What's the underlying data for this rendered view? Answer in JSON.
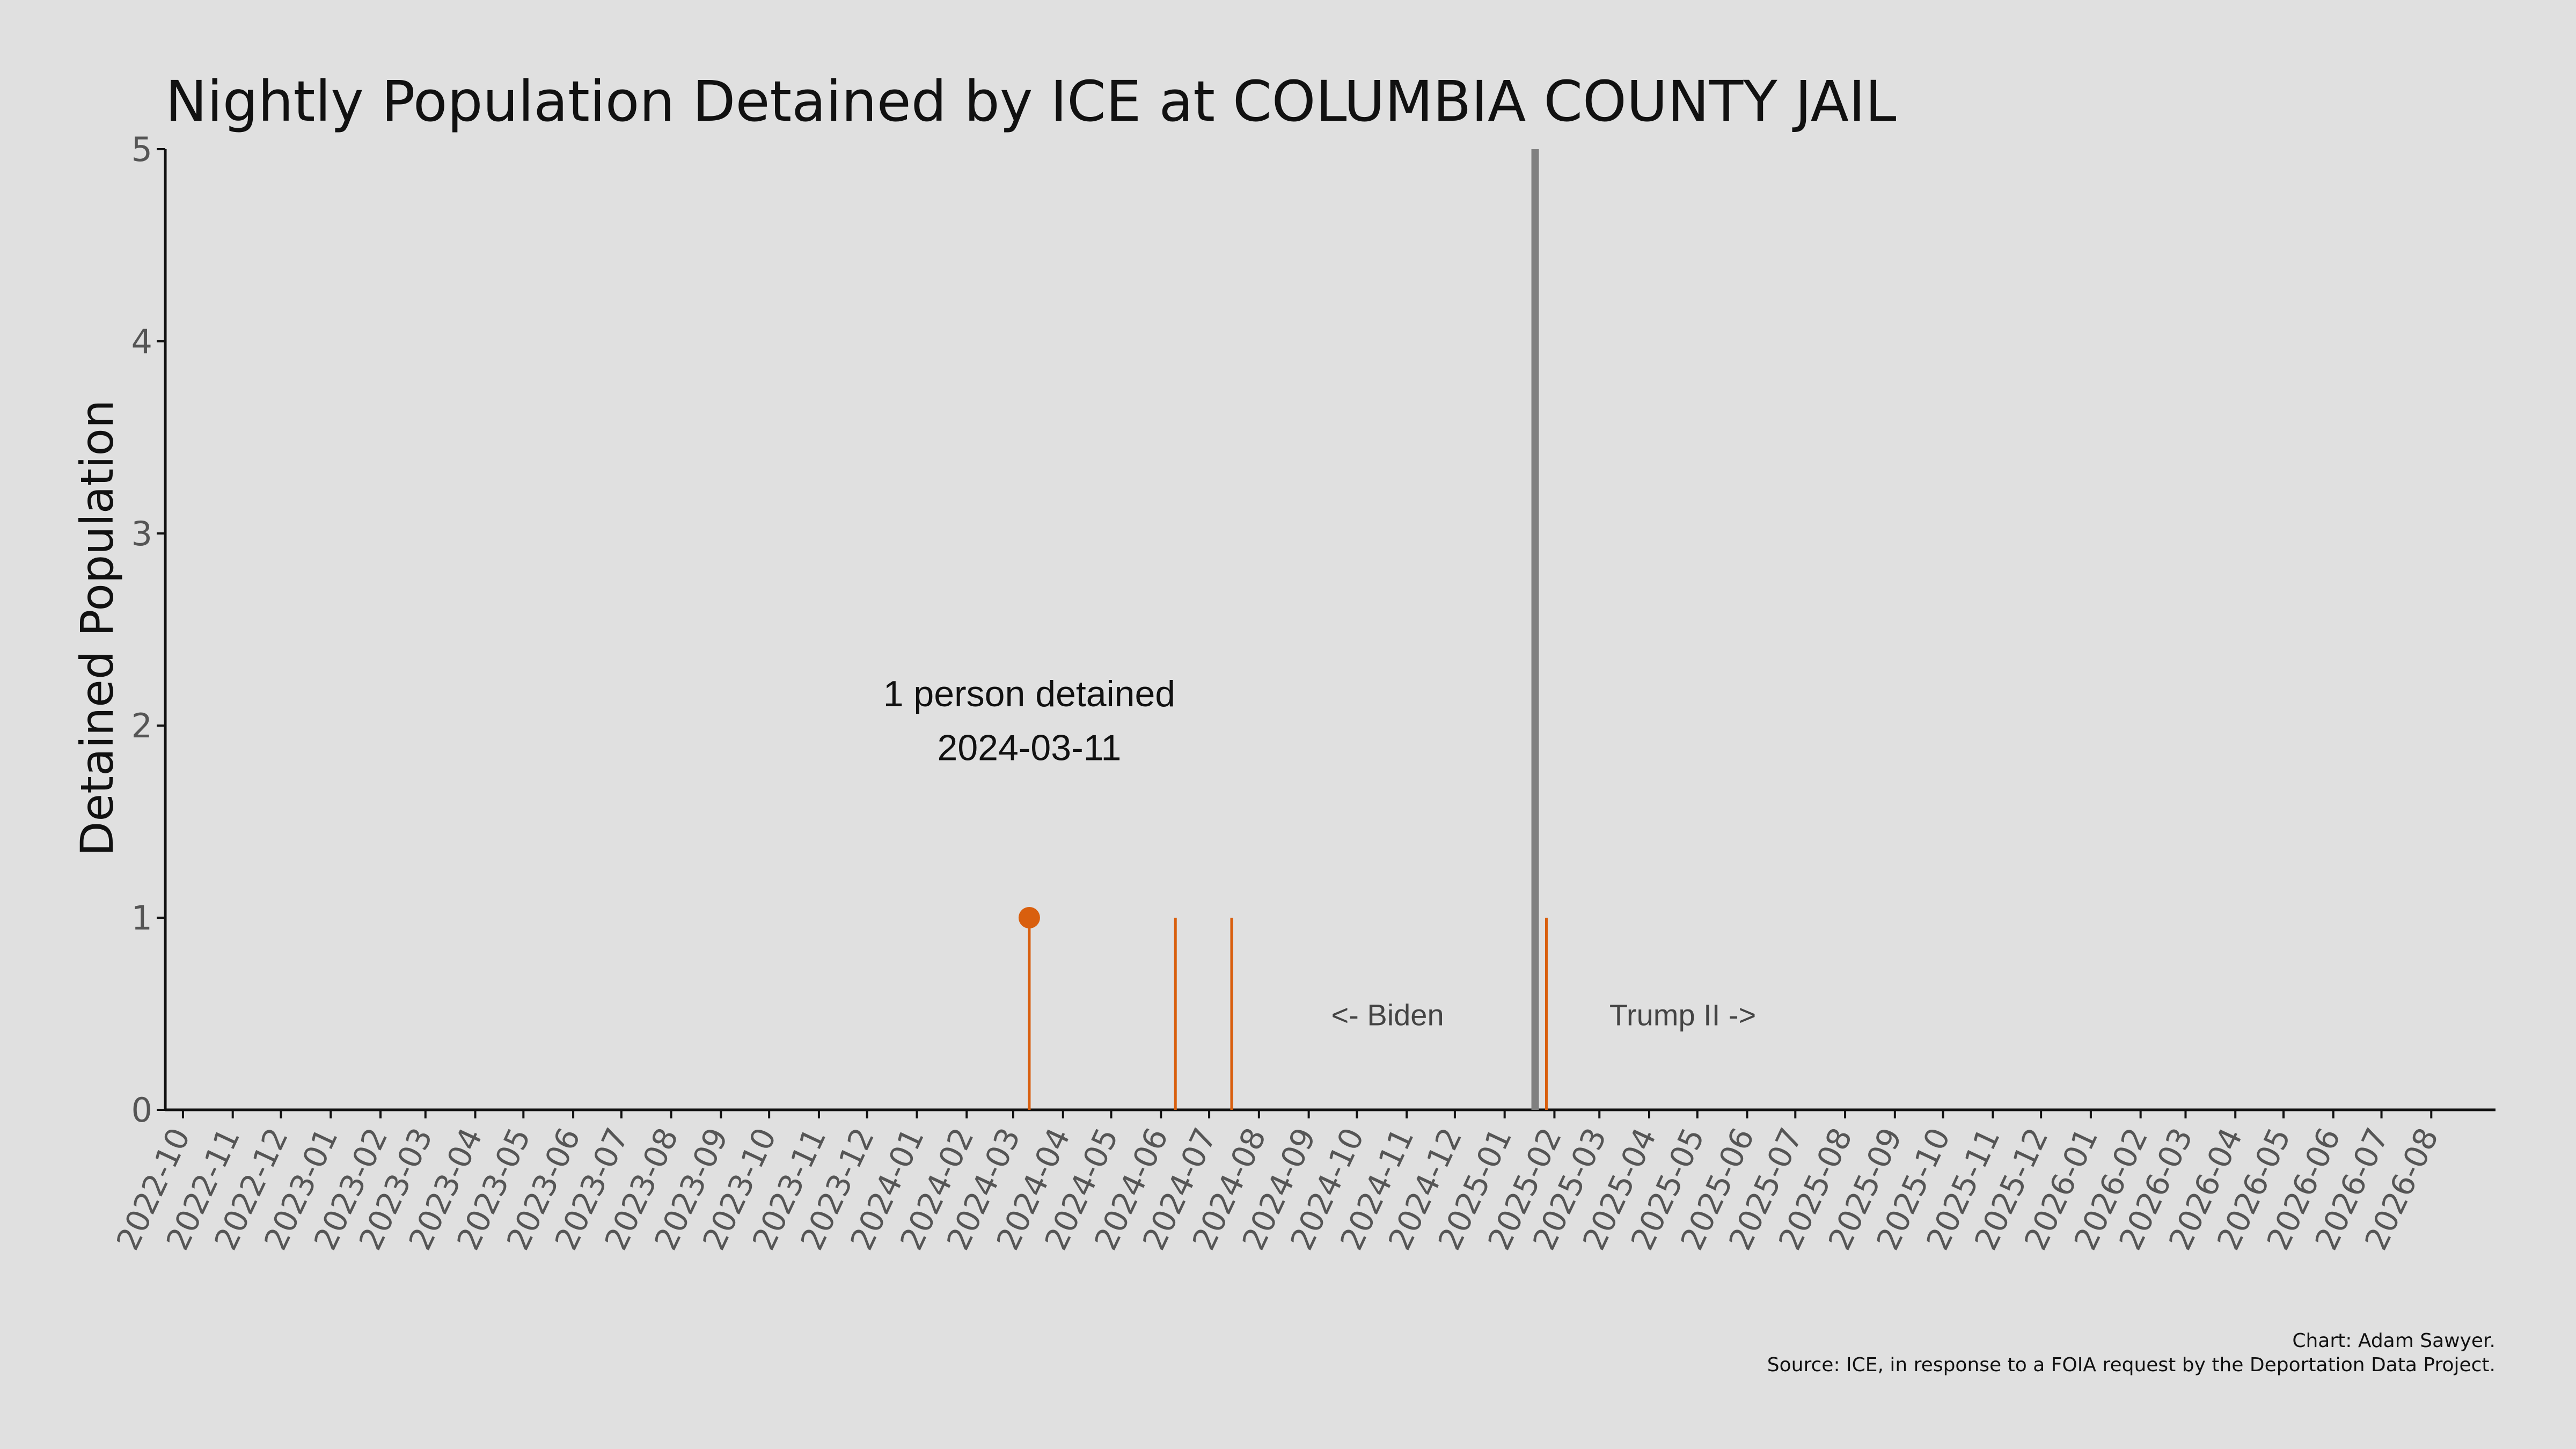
{
  "chart_data": {
    "type": "line",
    "title": "Nightly Population Detained by ICE at COLUMBIA COUNTY JAIL",
    "ylabel": "Detained Population",
    "xlabel": "",
    "ylim": [
      0,
      5
    ],
    "yticks": [
      "0",
      "1",
      "2",
      "3",
      "4",
      "5"
    ],
    "xlim": [
      "2022-09-20",
      "2026-09-10"
    ],
    "xtick_labels": [
      "2022-10",
      "2022-11",
      "2022-12",
      "2023-01",
      "2023-02",
      "2023-03",
      "2023-04",
      "2023-05",
      "2023-06",
      "2023-07",
      "2023-08",
      "2023-09",
      "2023-10",
      "2023-11",
      "2023-12",
      "2024-01",
      "2024-02",
      "2024-03",
      "2024-04",
      "2024-05",
      "2024-06",
      "2024-07",
      "2024-08",
      "2024-09",
      "2024-10",
      "2024-11",
      "2024-12",
      "2025-01",
      "2025-02",
      "2025-03",
      "2025-04",
      "2025-05",
      "2025-06",
      "2025-07",
      "2025-08",
      "2025-09",
      "2025-10",
      "2025-11",
      "2025-12",
      "2026-01",
      "2026-02",
      "2026-03",
      "2026-04",
      "2026-05",
      "2026-06",
      "2026-07",
      "2026-08"
    ],
    "series": [
      {
        "color": "#d95f0e",
        "points": [
          {
            "x": "2024-03-11",
            "y": 1
          },
          {
            "x": "2024-06-10",
            "y": 1
          },
          {
            "x": "2024-07-15",
            "y": 1
          },
          {
            "x": "2025-01-27",
            "y": 1
          }
        ]
      }
    ],
    "highlight": {
      "x": "2024-03-11",
      "y": 1,
      "label_line1": "1 person detained",
      "label_line2": "2024-03-11"
    },
    "reference_line": {
      "x": "2025-01-20",
      "color": "#808080",
      "left_label": "<- Biden",
      "right_label": "Trump II ->"
    },
    "grid": false,
    "credits": {
      "line1": "Chart: Adam Sawyer.",
      "line2": "Source: ICE, in response to a FOIA request by the Deportation Data Project."
    }
  }
}
